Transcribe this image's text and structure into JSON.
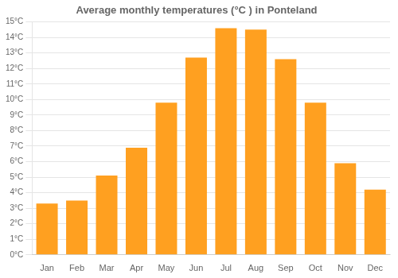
{
  "chart_data": {
    "type": "bar",
    "title": "Average monthly temperatures (°C ) in Ponteland",
    "categories": [
      "Jan",
      "Feb",
      "Mar",
      "Apr",
      "May",
      "Jun",
      "Jul",
      "Aug",
      "Sep",
      "Oct",
      "Nov",
      "Dec"
    ],
    "values": [
      3.3,
      3.5,
      5.1,
      6.9,
      9.8,
      12.7,
      14.6,
      14.5,
      12.6,
      9.8,
      5.9,
      4.2
    ],
    "color": "#FFA020",
    "ylim": [
      0,
      15
    ],
    "yticks": [
      {
        "value": 0,
        "label": "0°C"
      },
      {
        "value": 1,
        "label": "1°C"
      },
      {
        "value": 2,
        "label": "2°C"
      },
      {
        "value": 3,
        "label": "3°C"
      },
      {
        "value": 4,
        "label": "4°C"
      },
      {
        "value": 5,
        "label": "5°C"
      },
      {
        "value": 6,
        "label": "6°C"
      },
      {
        "value": 7,
        "label": "7°C"
      },
      {
        "value": 8,
        "label": "8°C"
      },
      {
        "value": 9,
        "label": "9°C"
      },
      {
        "value": 10,
        "label": "10°C"
      },
      {
        "value": 11,
        "label": "11°C"
      },
      {
        "value": 12,
        "label": "12°C"
      },
      {
        "value": 13,
        "label": "13°C"
      },
      {
        "value": 14,
        "label": "14°C"
      },
      {
        "value": 15,
        "label": "15°C"
      }
    ],
    "grid": true
  }
}
